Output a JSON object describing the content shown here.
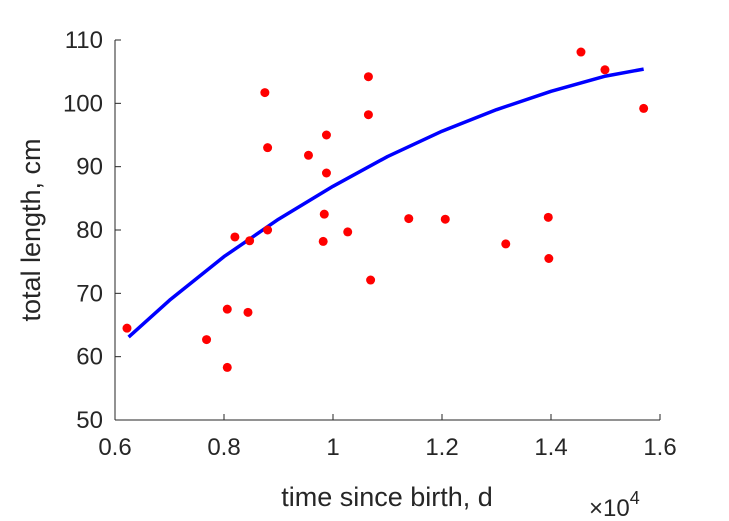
{
  "chart_data": {
    "type": "scatter",
    "title": "",
    "xlabel": "time since birth, d",
    "ylabel": "total length, cm",
    "x_multiplier": "×10",
    "x_multiplier_exp": "4",
    "xlim": [
      0.6,
      1.6
    ],
    "ylim": [
      50,
      110
    ],
    "x_scale": 10000,
    "xticks": [
      0.6,
      0.8,
      1.0,
      1.2,
      1.4,
      1.6
    ],
    "xtick_labels": [
      "0.6",
      "0.8",
      "1",
      "1.2",
      "1.4",
      "1.6"
    ],
    "yticks": [
      50,
      60,
      70,
      80,
      90,
      100,
      110
    ],
    "ytick_labels": [
      "50",
      "60",
      "70",
      "80",
      "90",
      "100",
      "110"
    ],
    "grid": false,
    "series": [
      {
        "type": "scatter",
        "color": "#ff0000",
        "points": [
          [
            6220,
            64.5
          ],
          [
            7680,
            62.7
          ],
          [
            8060,
            58.3
          ],
          [
            8060,
            67.5
          ],
          [
            8200,
            78.9
          ],
          [
            8440,
            67.0
          ],
          [
            8470,
            78.3
          ],
          [
            8750,
            101.7
          ],
          [
            8800,
            93.0
          ],
          [
            8800,
            80.0
          ],
          [
            9550,
            91.8
          ],
          [
            9820,
            78.2
          ],
          [
            9840,
            82.5
          ],
          [
            9880,
            95.0
          ],
          [
            9880,
            89.0
          ],
          [
            10270,
            79.7
          ],
          [
            10650,
            104.2
          ],
          [
            10650,
            98.2
          ],
          [
            10690,
            72.1
          ],
          [
            11390,
            81.8
          ],
          [
            12060,
            81.7
          ],
          [
            13170,
            77.8
          ],
          [
            13950,
            82.0
          ],
          [
            13960,
            75.5
          ],
          [
            14550,
            108.1
          ],
          [
            14990,
            105.3
          ],
          [
            15700,
            99.2
          ]
        ]
      },
      {
        "type": "line",
        "color": "#0000ff",
        "points": [
          [
            6250,
            63.1
          ],
          [
            7000,
            68.9
          ],
          [
            8000,
            75.8
          ],
          [
            9000,
            81.7
          ],
          [
            10000,
            86.9
          ],
          [
            11000,
            91.6
          ],
          [
            12000,
            95.6
          ],
          [
            13000,
            99.0
          ],
          [
            14000,
            101.9
          ],
          [
            15000,
            104.3
          ],
          [
            15700,
            105.4
          ]
        ]
      }
    ]
  }
}
